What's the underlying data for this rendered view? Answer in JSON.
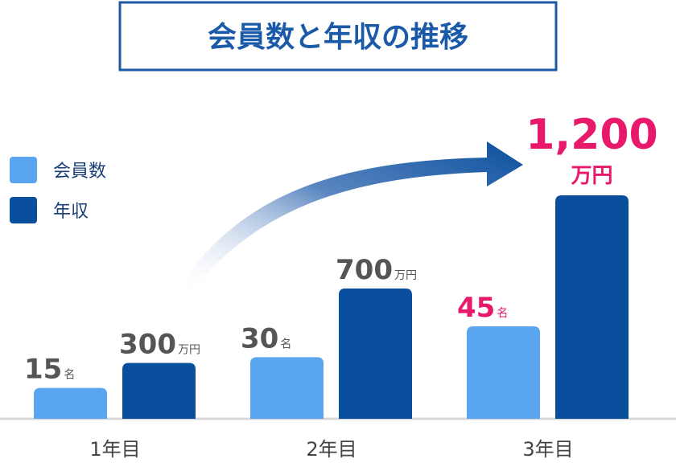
{
  "chart_data": {
    "type": "bar",
    "title": "会員数と年収の推移",
    "categories": [
      "1年目",
      "2年目",
      "3年目"
    ],
    "series": [
      {
        "name": "会員数",
        "color": "#5aa5ef",
        "values": [
          15,
          30,
          45
        ],
        "unit": "名"
      },
      {
        "name": "年収",
        "color": "#0a4f9e",
        "values": [
          300,
          700,
          1200
        ],
        "value_labels": [
          "300",
          "700",
          "1,200"
        ],
        "unit": "万円"
      }
    ],
    "label_colors": [
      "#555555",
      "#555555",
      "#e8196b"
    ]
  }
}
